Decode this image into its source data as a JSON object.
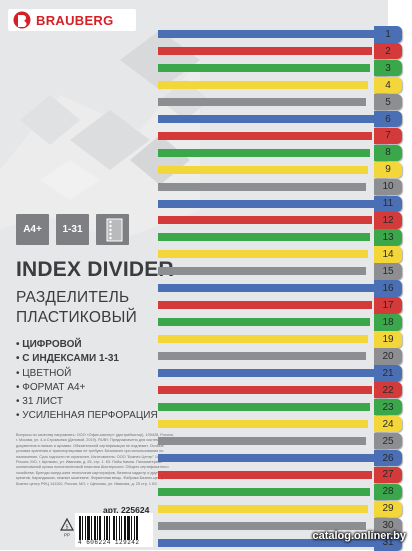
{
  "brand": {
    "name": "BRAUBERG",
    "color": "#d62027"
  },
  "boxes": [
    {
      "label": "A4+"
    },
    {
      "label": "1-31"
    },
    {
      "icon": "punched-sheet-icon"
    }
  ],
  "title": "INDEX DIVIDER",
  "subtitle_lines": [
    "РАЗДЕЛИТЕЛЬ",
    "ПЛАСТИКОВЫЙ"
  ],
  "features": [
    {
      "text": "• ЦИФРОВОЙ",
      "bold": true
    },
    {
      "text": "• С ИНДЕКСАМИ 1-31",
      "bold": true
    },
    {
      "text": "• ЦВЕТНОЙ",
      "bold": false
    },
    {
      "text": "• ФОРМАТ А4+",
      "bold": false
    },
    {
      "text": "• 31 ЛИСТ",
      "bold": false
    },
    {
      "text": "• УСИЛЕННАЯ ПЕРФОРАЦИЯ",
      "bold": false
    }
  ],
  "fine_print": "Вопросы по качеству направлять: ООО «Офис-мастер» (дистрибьютор), 109428, Россия, г. Москва, ул. 4-я Стромынка (Деловой, 2019). RUBY. Предназначено для систематизации документов в папках и архивах. Обязательной сертификации не подлежит. Особые условия хранения и транспортировки не требуют. Безопасен при использовании по назначению. Срок годности не ограничен. Изготовитель: ООО \"Бизнес Центр\" 141100, Россия, МО, г. Щелково, ул. Иванова, д. 25, стр. 1. КЗ. Пейж Кампа. Пиломатериал колпиловиной кулиш полиэтиленовой пластики Шахтерского: Общего сертификатного хозяйства. Бренды сжеру-жига технологии картографов, бизнеса кадастр и другая креатив, Карандашом, нежных шкатемне. Фирменная вещь. Фабрика Бизнес-центр. Бизнес центр РФЦ 141100, Россия, МО, г. Щелково, ул. Иванова, д. 25 стр. 1 КЗ.",
  "article": "арт. 225624",
  "barcode_number": "4 606224 129242",
  "stripes_colors": [
    "#4b6fb5",
    "#d43a3a",
    "#3aa84a",
    "#f2d63a",
    "#8c8e91"
  ],
  "tabs": [
    {
      "label": "1",
      "color": "#4b6fb5"
    },
    {
      "label": "2",
      "color": "#d43a3a"
    },
    {
      "label": "3",
      "color": "#3aa84a"
    },
    {
      "label": "4",
      "color": "#f2d63a"
    },
    {
      "label": "5",
      "color": "#8c8e91"
    },
    {
      "label": "6",
      "color": "#4b6fb5"
    },
    {
      "label": "7",
      "color": "#d43a3a"
    },
    {
      "label": "8",
      "color": "#3aa84a"
    },
    {
      "label": "9",
      "color": "#f2d63a"
    },
    {
      "label": "10",
      "color": "#8c8e91"
    },
    {
      "label": "11",
      "color": "#4b6fb5"
    },
    {
      "label": "12",
      "color": "#d43a3a"
    },
    {
      "label": "13",
      "color": "#3aa84a"
    },
    {
      "label": "14",
      "color": "#f2d63a"
    },
    {
      "label": "15",
      "color": "#8c8e91"
    },
    {
      "label": "16",
      "color": "#4b6fb5"
    },
    {
      "label": "17",
      "color": "#d43a3a"
    },
    {
      "label": "18",
      "color": "#3aa84a"
    },
    {
      "label": "19",
      "color": "#f2d63a"
    },
    {
      "label": "20",
      "color": "#8c8e91"
    },
    {
      "label": "21",
      "color": "#4b6fb5"
    },
    {
      "label": "22",
      "color": "#d43a3a"
    },
    {
      "label": "23",
      "color": "#3aa84a"
    },
    {
      "label": "24",
      "color": "#f2d63a"
    },
    {
      "label": "25",
      "color": "#8c8e91"
    },
    {
      "label": "26",
      "color": "#4b6fb5"
    },
    {
      "label": "27",
      "color": "#d43a3a"
    },
    {
      "label": "28",
      "color": "#3aa84a"
    },
    {
      "label": "29",
      "color": "#f2d63a"
    },
    {
      "label": "30",
      "color": "#8c8e91"
    },
    {
      "label": "31",
      "color": "#4b6fb5"
    }
  ],
  "watermark": "catalog.onliner.by"
}
